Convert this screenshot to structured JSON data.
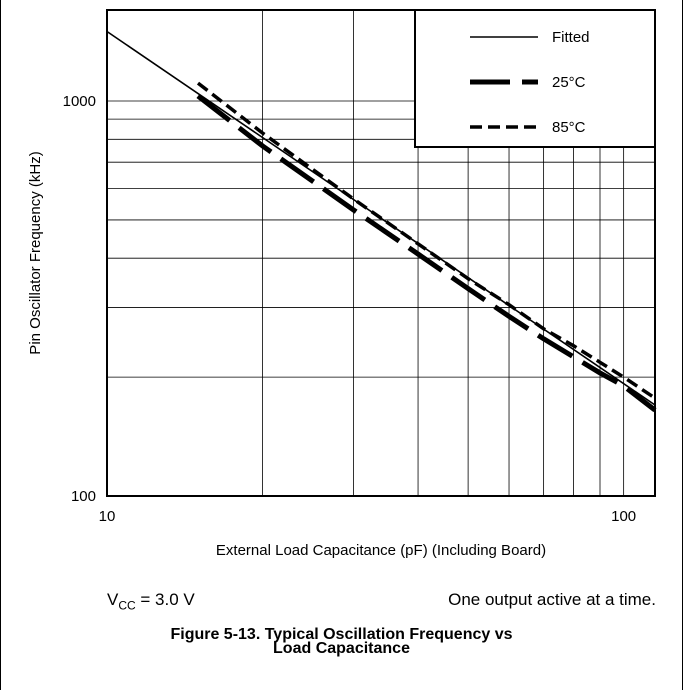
{
  "chart_data": {
    "type": "line",
    "xscale": "log",
    "yscale": "log",
    "xlim": [
      10,
      115
    ],
    "ylim": [
      100,
      1700
    ],
    "xticks": [
      "10",
      "100"
    ],
    "yticks": [
      "100",
      "1000"
    ],
    "xlabel": "External Load Capacitance (pF) (Including Board)",
    "ylabel": "Pin Oscillator Frequency (kHz)",
    "grid": true,
    "legend_position": "top-right",
    "series": [
      {
        "name": "Fitted",
        "style": "thin-solid",
        "x": [
          10,
          115
        ],
        "y": [
          1500,
          170
        ]
      },
      {
        "name": "25°C",
        "style": "thick-dashed",
        "x": [
          15,
          20,
          30,
          40,
          50,
          60,
          70,
          80,
          90,
          100,
          115
        ],
        "y": [
          1030,
          770,
          530,
          410,
          335,
          285,
          250,
          225,
          205,
          190,
          165
        ]
      },
      {
        "name": "85°C",
        "style": "dashed",
        "x": [
          15,
          20,
          30,
          40,
          50,
          60,
          70,
          80,
          90,
          100,
          115
        ],
        "y": [
          1110,
          830,
          565,
          435,
          355,
          305,
          265,
          240,
          218,
          200,
          177
        ]
      }
    ]
  },
  "notes": {
    "vcc_prefix": "V",
    "vcc_subscript": "CC",
    "vcc_value": " = 3.0 V",
    "active": "One output active at a time."
  },
  "caption": {
    "line1": "Figure 5-13. Typical Oscillation Frequency vs",
    "line2": "Load Capacitance"
  }
}
